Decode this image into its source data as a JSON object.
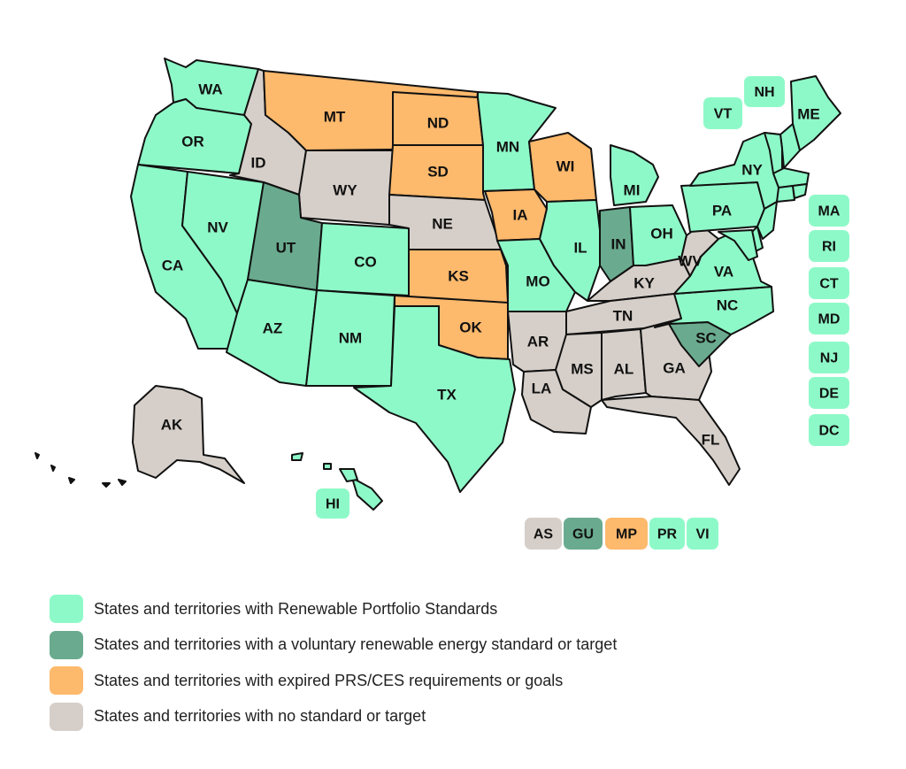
{
  "colors": {
    "rps": "#8ef9c8",
    "voluntary": "#6aab8f",
    "expired": "#fdb96c",
    "none": "#d6cfc9",
    "outline": "#111111"
  },
  "legend": [
    {
      "category": "rps",
      "label": "States and territories with Renewable Portfolio Standards"
    },
    {
      "category": "voluntary",
      "label": "States and territories with a voluntary renewable energy standard or target"
    },
    {
      "category": "expired",
      "label": "States and territories with expired PRS/CES requirements or goals"
    },
    {
      "category": "none",
      "label": "States and territories with no standard or target"
    }
  ],
  "states": [
    {
      "abbr": "WA",
      "category": "rps"
    },
    {
      "abbr": "OR",
      "category": "rps"
    },
    {
      "abbr": "CA",
      "category": "rps"
    },
    {
      "abbr": "NV",
      "category": "rps"
    },
    {
      "abbr": "ID",
      "category": "none"
    },
    {
      "abbr": "MT",
      "category": "expired"
    },
    {
      "abbr": "WY",
      "category": "none"
    },
    {
      "abbr": "UT",
      "category": "voluntary"
    },
    {
      "abbr": "CO",
      "category": "rps"
    },
    {
      "abbr": "AZ",
      "category": "rps"
    },
    {
      "abbr": "NM",
      "category": "rps"
    },
    {
      "abbr": "ND",
      "category": "expired"
    },
    {
      "abbr": "SD",
      "category": "expired"
    },
    {
      "abbr": "NE",
      "category": "none"
    },
    {
      "abbr": "KS",
      "category": "expired"
    },
    {
      "abbr": "OK",
      "category": "expired"
    },
    {
      "abbr": "TX",
      "category": "rps"
    },
    {
      "abbr": "MN",
      "category": "rps"
    },
    {
      "abbr": "IA",
      "category": "expired"
    },
    {
      "abbr": "MO",
      "category": "rps"
    },
    {
      "abbr": "AR",
      "category": "none"
    },
    {
      "abbr": "LA",
      "category": "none"
    },
    {
      "abbr": "WI",
      "category": "expired"
    },
    {
      "abbr": "IL",
      "category": "rps"
    },
    {
      "abbr": "MI",
      "category": "rps"
    },
    {
      "abbr": "IN",
      "category": "voluntary"
    },
    {
      "abbr": "OH",
      "category": "rps"
    },
    {
      "abbr": "KY",
      "category": "none"
    },
    {
      "abbr": "TN",
      "category": "none"
    },
    {
      "abbr": "MS",
      "category": "none"
    },
    {
      "abbr": "AL",
      "category": "none"
    },
    {
      "abbr": "GA",
      "category": "none"
    },
    {
      "abbr": "FL",
      "category": "none"
    },
    {
      "abbr": "SC",
      "category": "voluntary"
    },
    {
      "abbr": "NC",
      "category": "rps"
    },
    {
      "abbr": "VA",
      "category": "rps"
    },
    {
      "abbr": "WV",
      "category": "none"
    },
    {
      "abbr": "PA",
      "category": "rps"
    },
    {
      "abbr": "NY",
      "category": "rps"
    },
    {
      "abbr": "ME",
      "category": "rps"
    },
    {
      "abbr": "AK",
      "category": "none"
    }
  ],
  "northeast_unlabeled": [
    {
      "name": "New Hampshire",
      "category": "rps"
    },
    {
      "name": "Vermont",
      "category": "rps"
    },
    {
      "name": "Massachusetts",
      "category": "rps"
    },
    {
      "name": "Connecticut",
      "category": "rps"
    },
    {
      "name": "Rhode Island",
      "category": "rps"
    },
    {
      "name": "New Jersey",
      "category": "rps"
    },
    {
      "name": "Delaware",
      "category": "rps"
    },
    {
      "name": "Maryland",
      "category": "rps"
    },
    {
      "name": "Hawaii",
      "category": "rps"
    }
  ],
  "callouts": [
    {
      "abbr": "VT",
      "category": "rps"
    },
    {
      "abbr": "NH",
      "category": "rps"
    },
    {
      "abbr": "MA",
      "category": "rps"
    },
    {
      "abbr": "RI",
      "category": "rps"
    },
    {
      "abbr": "CT",
      "category": "rps"
    },
    {
      "abbr": "MD",
      "category": "rps"
    },
    {
      "abbr": "NJ",
      "category": "rps"
    },
    {
      "abbr": "DE",
      "category": "rps"
    },
    {
      "abbr": "DC",
      "category": "rps"
    },
    {
      "abbr": "HI",
      "category": "rps"
    }
  ],
  "territories": [
    {
      "abbr": "AS",
      "category": "none"
    },
    {
      "abbr": "GU",
      "category": "voluntary"
    },
    {
      "abbr": "MP",
      "category": "expired"
    },
    {
      "abbr": "PR",
      "category": "rps"
    },
    {
      "abbr": "VI",
      "category": "rps"
    }
  ]
}
